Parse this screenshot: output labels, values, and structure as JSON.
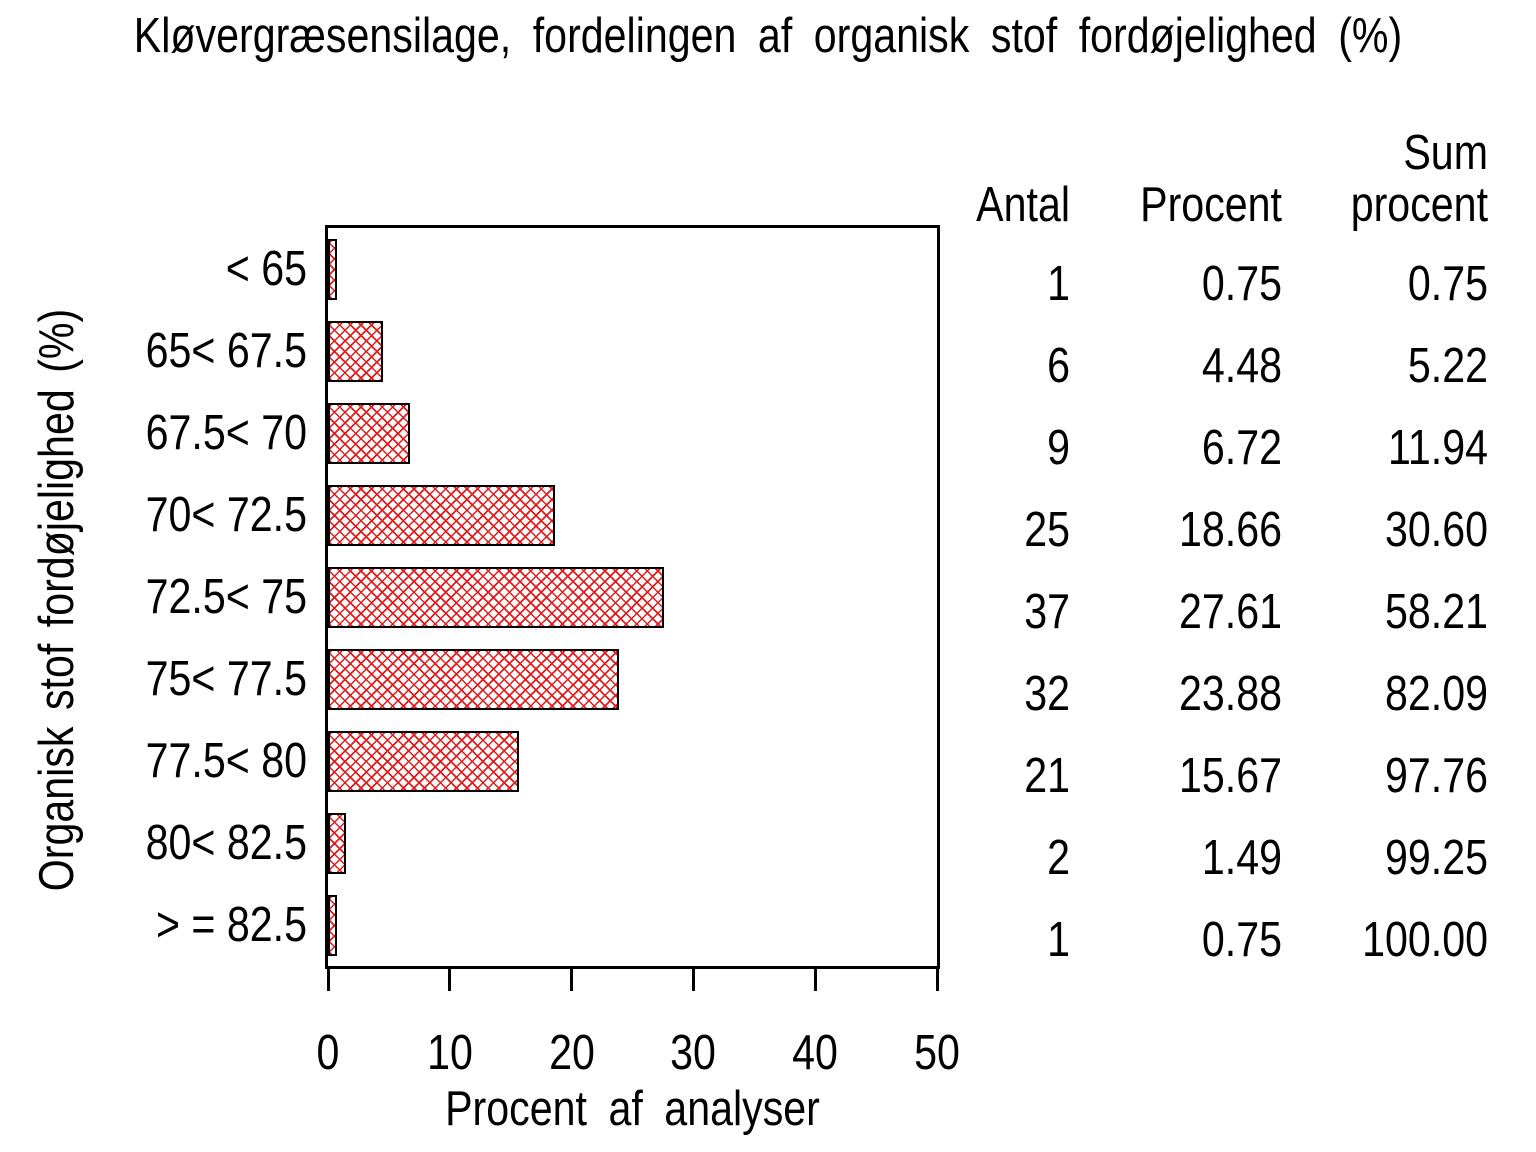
{
  "title": "Kløvergræsensilage, fordelingen af organisk stof fordøjelighed (%)",
  "chart_data": {
    "type": "bar",
    "orientation": "horizontal",
    "title": "Kløvergræsensilage, fordelingen af organisk stof fordøjelighed (%)",
    "xlabel": "Procent af analyser",
    "ylabel": "Organisk stof fordøjelighed (%)",
    "xlim": [
      0,
      50
    ],
    "xticks": [
      "0",
      "10",
      "20",
      "30",
      "40",
      "50"
    ],
    "grid": false,
    "bar_color": "#e31b1b",
    "bar_pattern": "diagonal-crosshatch",
    "categories": [
      "< 65",
      "65< 67.5",
      "67.5< 70",
      "70< 72.5",
      "72.5< 75",
      "75< 77.5",
      "77.5< 80",
      "80< 82.5",
      "> = 82.5"
    ],
    "values": [
      0.75,
      4.48,
      6.72,
      18.66,
      27.61,
      23.88,
      15.67,
      1.49,
      0.75
    ],
    "table": {
      "header": {
        "antal": "Antal",
        "procent": "Procent",
        "sum_line1": "Sum",
        "sum_line2": "procent"
      },
      "rows": [
        {
          "antal": "1",
          "procent": "0.75",
          "sum": "0.75"
        },
        {
          "antal": "6",
          "procent": "4.48",
          "sum": "5.22"
        },
        {
          "antal": "9",
          "procent": "6.72",
          "sum": "11.94"
        },
        {
          "antal": "25",
          "procent": "18.66",
          "sum": "30.60"
        },
        {
          "antal": "37",
          "procent": "27.61",
          "sum": "58.21"
        },
        {
          "antal": "32",
          "procent": "23.88",
          "sum": "82.09"
        },
        {
          "antal": "21",
          "procent": "15.67",
          "sum": "97.76"
        },
        {
          "antal": "2",
          "procent": "1.49",
          "sum": "99.25"
        },
        {
          "antal": "1",
          "procent": "0.75",
          "sum": "100.00"
        }
      ]
    }
  }
}
